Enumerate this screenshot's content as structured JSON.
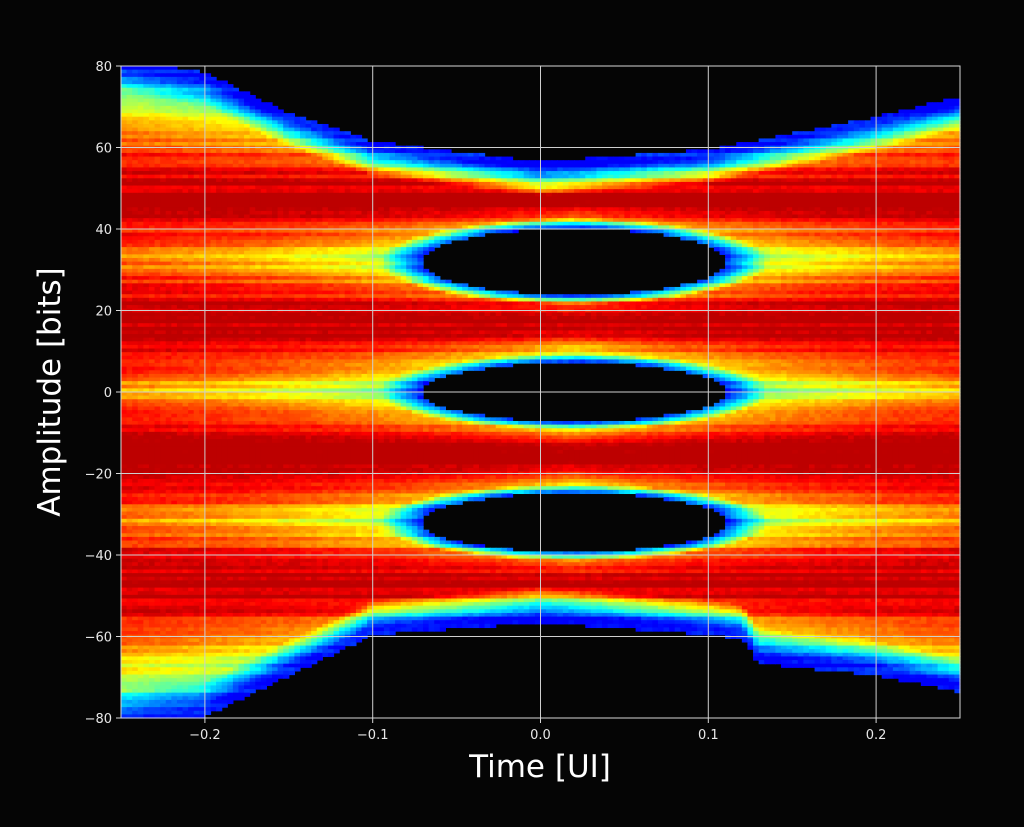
{
  "chart_data": {
    "type": "heatmap",
    "title": "",
    "xlabel": "Time [UI]",
    "ylabel": "Amplitude [bits]",
    "xlim": [
      -0.25,
      0.25
    ],
    "ylim": [
      -80,
      80
    ],
    "x_ticks": [
      -0.2,
      -0.1,
      0.0,
      0.1,
      0.2
    ],
    "x_tick_labels": [
      "−0.2",
      "−0.1",
      "0.0",
      "0.1",
      "0.2"
    ],
    "y_ticks": [
      -80,
      -60,
      -40,
      -20,
      0,
      20,
      40,
      60,
      80
    ],
    "y_tick_labels": [
      "−80",
      "−60",
      "−40",
      "−20",
      "0",
      "20",
      "40",
      "60",
      "80"
    ],
    "grid": true,
    "colormap": "jet",
    "background_color": "#050505",
    "grid_color": "#cfcfcf",
    "description_levels": {
      "signal_levels_bits": [
        48,
        17,
        -16,
        -47
      ],
      "eye_openings": [
        {
          "center_time": 0.02,
          "center_amplitude": 32,
          "half_width": 0.1,
          "half_height": 9
        },
        {
          "center_time": 0.02,
          "center_amplitude": 0,
          "half_width": 0.1,
          "half_height": 8
        },
        {
          "center_time": 0.02,
          "center_amplitude": -32,
          "half_width": 0.1,
          "half_height": 8
        }
      ],
      "outer_envelope": {
        "top": [
          [
            -0.25,
            80
          ],
          [
            -0.2,
            77
          ],
          [
            -0.15,
            67
          ],
          [
            -0.1,
            60
          ],
          [
            0.0,
            55
          ],
          [
            0.1,
            58
          ],
          [
            0.2,
            66
          ],
          [
            0.25,
            71
          ]
        ],
        "bottom": [
          [
            -0.25,
            -80
          ],
          [
            -0.2,
            -78
          ],
          [
            -0.15,
            -68
          ],
          [
            -0.1,
            -58
          ],
          [
            0.0,
            -55
          ],
          [
            0.1,
            -58
          ],
          [
            0.12,
            -59
          ],
          [
            0.13,
            -65
          ],
          [
            0.2,
            -68
          ],
          [
            0.25,
            -72
          ]
        ]
      }
    }
  }
}
